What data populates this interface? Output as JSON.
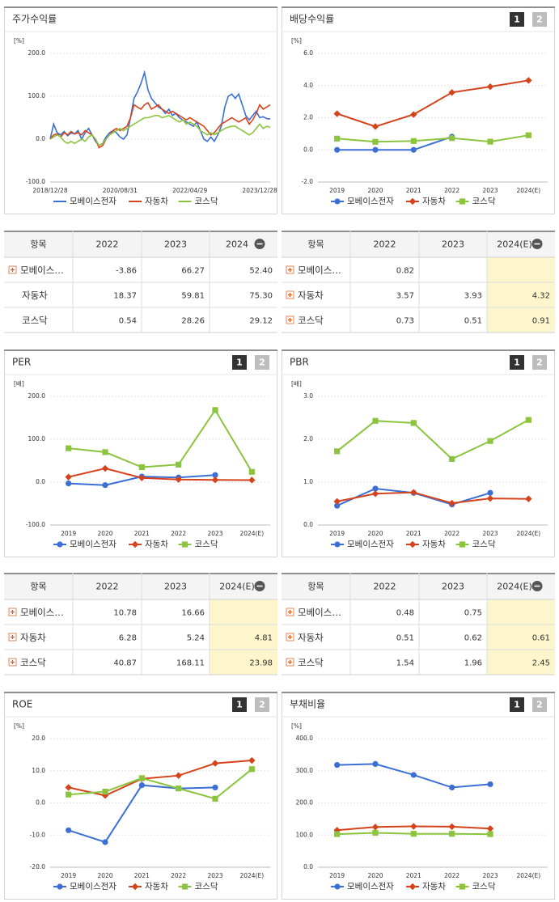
{
  "chart_data": [
    {
      "type": "line",
      "title": "주가수익률",
      "unit": "[%]",
      "grid": true,
      "markers": false,
      "categories": [
        "2018/12/28",
        null,
        null,
        null,
        null,
        null,
        null,
        null,
        null,
        null,
        null,
        null,
        null,
        null,
        null,
        null,
        null,
        null,
        null,
        null,
        "2020/08/31",
        null,
        null,
        null,
        null,
        null,
        null,
        null,
        null,
        null,
        null,
        null,
        null,
        null,
        null,
        null,
        null,
        null,
        null,
        null,
        "2022/04/29",
        null,
        null,
        null,
        null,
        null,
        null,
        null,
        null,
        null,
        null,
        null,
        null,
        null,
        null,
        null,
        null,
        null,
        null,
        null,
        "2023/12/28",
        null,
        null,
        null
      ],
      "ylim": [
        -100,
        200
      ],
      "yticks": [
        {
          "value": 200,
          "label": "200.0"
        },
        {
          "value": 100,
          "label": "100.0"
        },
        {
          "value": 0,
          "label": "0.0"
        },
        {
          "value": -100,
          "label": "-100.0"
        }
      ],
      "series": [
        {
          "name": "모베이스전자",
          "color": "#3b6fd6",
          "marker": "circle",
          "values": [
            0,
            35,
            15,
            10,
            18,
            8,
            15,
            12,
            20,
            0,
            15,
            25,
            10,
            -5,
            -15,
            -10,
            5,
            15,
            20,
            15,
            5,
            0,
            10,
            50,
            95,
            110,
            130,
            155,
            115,
            95,
            85,
            75,
            70,
            60,
            70,
            55,
            60,
            50,
            45,
            40,
            35,
            30,
            40,
            20,
            0,
            -5,
            5,
            -5,
            10,
            30,
            75,
            100,
            105,
            95,
            105,
            80,
            55,
            45,
            55,
            65,
            50,
            52,
            48,
            47
          ]
        },
        {
          "name": "자동차",
          "color": "#d5431d",
          "marker": "diamond",
          "values": [
            0,
            10,
            12,
            5,
            15,
            10,
            18,
            12,
            15,
            10,
            20,
            15,
            10,
            0,
            -20,
            -15,
            0,
            10,
            20,
            25,
            20,
            25,
            30,
            50,
            80,
            75,
            70,
            80,
            85,
            70,
            75,
            80,
            70,
            65,
            60,
            65,
            60,
            55,
            50,
            45,
            50,
            45,
            40,
            35,
            30,
            20,
            10,
            15,
            25,
            35,
            40,
            45,
            50,
            45,
            40,
            45,
            50,
            35,
            45,
            60,
            80,
            70,
            75,
            80
          ]
        },
        {
          "name": "코스닥",
          "color": "#8cc43f",
          "marker": "square",
          "values": [
            0,
            5,
            10,
            5,
            -5,
            -10,
            -5,
            -10,
            -5,
            0,
            -5,
            5,
            10,
            0,
            -15,
            -10,
            0,
            10,
            15,
            20,
            25,
            20,
            25,
            30,
            35,
            40,
            45,
            50,
            50,
            52,
            55,
            55,
            50,
            52,
            55,
            50,
            45,
            40,
            45,
            35,
            40,
            35,
            30,
            20,
            15,
            10,
            15,
            10,
            15,
            20,
            25,
            28,
            30,
            30,
            25,
            20,
            15,
            10,
            15,
            25,
            35,
            25,
            30,
            28
          ]
        }
      ]
    },
    {
      "type": "line",
      "title": "배당수익률",
      "unit": "[%]",
      "pages": [
        "1",
        "2"
      ],
      "grid": true,
      "markers": true,
      "categories": [
        "2019",
        "2020",
        "2021",
        "2022",
        "2023",
        "2024(E)"
      ],
      "ylim": [
        -2,
        6
      ],
      "yticks": [
        {
          "value": 6,
          "label": "6.0"
        },
        {
          "value": 4,
          "label": "4.0"
        },
        {
          "value": 2,
          "label": "2.0"
        },
        {
          "value": 0,
          "label": "0.0"
        },
        {
          "value": -2,
          "label": "-2.0"
        }
      ],
      "series": [
        {
          "name": "모베이스전자",
          "color": "#3b6fd6",
          "marker": "circle",
          "values": [
            0,
            0,
            0,
            0.82,
            null,
            null
          ]
        },
        {
          "name": "자동차",
          "color": "#d5431d",
          "marker": "diamond",
          "values": [
            2.25,
            1.45,
            2.2,
            3.57,
            3.93,
            4.32
          ]
        },
        {
          "name": "코스닥",
          "color": "#8cc43f",
          "marker": "square",
          "values": [
            0.7,
            0.5,
            0.55,
            0.73,
            0.51,
            0.91
          ]
        }
      ]
    },
    {
      "type": "line",
      "title": "PER",
      "unit": "[배]",
      "pages": [
        "1",
        "2"
      ],
      "grid": true,
      "markers": true,
      "categories": [
        "2019",
        "2020",
        "2021",
        "2022",
        "2023",
        "2024(E)"
      ],
      "ylim": [
        -100,
        200
      ],
      "yticks": [
        {
          "value": 200,
          "label": "200.0"
        },
        {
          "value": 100,
          "label": "100.0"
        },
        {
          "value": 0,
          "label": "0.0"
        },
        {
          "value": -100,
          "label": "-100.0"
        }
      ],
      "series": [
        {
          "name": "모베이스전자",
          "color": "#3b6fd6",
          "marker": "circle",
          "values": [
            -3,
            -7,
            13,
            10.78,
            16.66,
            null
          ]
        },
        {
          "name": "자동차",
          "color": "#d5431d",
          "marker": "diamond",
          "values": [
            12,
            32,
            10,
            6.28,
            5.24,
            4.81
          ]
        },
        {
          "name": "코스닥",
          "color": "#8cc43f",
          "marker": "square",
          "values": [
            79,
            70,
            35,
            40.87,
            168.11,
            23.98
          ]
        }
      ]
    },
    {
      "type": "line",
      "title": "PBR",
      "unit": "[배]",
      "pages": [
        "1",
        "2"
      ],
      "grid": true,
      "markers": true,
      "categories": [
        "2019",
        "2020",
        "2021",
        "2022",
        "2023",
        "2024(E)"
      ],
      "ylim": [
        0,
        3
      ],
      "yticks": [
        {
          "value": 3,
          "label": "3.0"
        },
        {
          "value": 2,
          "label": "2.0"
        },
        {
          "value": 1,
          "label": "1.0"
        },
        {
          "value": 0,
          "label": "0.0"
        }
      ],
      "series": [
        {
          "name": "모베이스전자",
          "color": "#3b6fd6",
          "marker": "circle",
          "values": [
            0.45,
            0.85,
            0.75,
            0.48,
            0.75,
            null
          ]
        },
        {
          "name": "자동차",
          "color": "#d5431d",
          "marker": "diamond",
          "values": [
            0.55,
            0.73,
            0.76,
            0.51,
            0.62,
            0.61
          ]
        },
        {
          "name": "코스닥",
          "color": "#8cc43f",
          "marker": "square",
          "values": [
            1.72,
            2.43,
            2.38,
            1.54,
            1.96,
            2.45
          ]
        }
      ]
    },
    {
      "type": "line",
      "title": "ROE",
      "unit": "[%]",
      "pages": [
        "1",
        "2"
      ],
      "grid": true,
      "markers": true,
      "categories": [
        "2019",
        "2020",
        "2021",
        "2022",
        "2023",
        "2024(E)"
      ],
      "ylim": [
        -20,
        20
      ],
      "yticks": [
        {
          "value": 20,
          "label": "20.0"
        },
        {
          "value": 10,
          "label": "10.0"
        },
        {
          "value": 0,
          "label": "0.0"
        },
        {
          "value": -10,
          "label": "-10.0"
        },
        {
          "value": -20,
          "label": "-20.0"
        }
      ],
      "series": [
        {
          "name": "모베이스전자",
          "color": "#3b6fd6",
          "marker": "circle",
          "values": [
            -8.5,
            -12.2,
            5.5,
            4.5,
            4.8,
            null
          ]
        },
        {
          "name": "자동차",
          "color": "#d5431d",
          "marker": "diamond",
          "values": [
            4.8,
            2.3,
            7.5,
            8.5,
            12.3,
            13.2
          ]
        },
        {
          "name": "코스닥",
          "color": "#8cc43f",
          "marker": "square",
          "values": [
            2.6,
            3.5,
            7.7,
            4.5,
            1.3,
            10.5
          ]
        }
      ]
    },
    {
      "type": "line",
      "title": "부채비율",
      "unit": "[%]",
      "pages": [
        "1",
        "2"
      ],
      "grid": true,
      "markers": true,
      "categories": [
        "2019",
        "2020",
        "2021",
        "2022",
        "2023",
        "2024(E)"
      ],
      "ylim": [
        0,
        400
      ],
      "yticks": [
        {
          "value": 400,
          "label": "400.0"
        },
        {
          "value": 300,
          "label": "300.0"
        },
        {
          "value": 200,
          "label": "200.0"
        },
        {
          "value": 100,
          "label": "100.0"
        },
        {
          "value": 0,
          "label": "0.0"
        }
      ],
      "series": [
        {
          "name": "모베이스전자",
          "color": "#3b6fd6",
          "marker": "circle",
          "values": [
            318,
            321,
            287,
            248,
            258,
            null
          ]
        },
        {
          "name": "자동차",
          "color": "#d5431d",
          "marker": "diamond",
          "values": [
            115,
            125,
            127,
            126,
            120,
            null
          ]
        },
        {
          "name": "코스닥",
          "color": "#8cc43f",
          "marker": "square",
          "values": [
            103,
            107,
            104,
            104,
            103,
            null
          ]
        }
      ]
    }
  ],
  "tables": [
    {
      "header": [
        "항목",
        "2022",
        "2023",
        "2024"
      ],
      "highlight_last": false,
      "rows": [
        {
          "name": "모베이스…",
          "expand": true,
          "cells": [
            "-3.86",
            "66.27",
            "52.40"
          ]
        },
        {
          "name": "자동차",
          "expand": false,
          "cells": [
            "18.37",
            "59.81",
            "75.30"
          ]
        },
        {
          "name": "코스닥",
          "expand": false,
          "cells": [
            "0.54",
            "28.26",
            "29.12"
          ]
        }
      ]
    },
    {
      "header": [
        "항목",
        "2022",
        "2023",
        "2024(E)"
      ],
      "highlight_last": true,
      "rows": [
        {
          "name": "모베이스…",
          "expand": true,
          "cells": [
            "0.82",
            null,
            null
          ]
        },
        {
          "name": "자동차",
          "expand": true,
          "cells": [
            "3.57",
            "3.93",
            "4.32"
          ]
        },
        {
          "name": "코스닥",
          "expand": true,
          "cells": [
            "0.73",
            "0.51",
            "0.91"
          ]
        }
      ]
    },
    {
      "header": [
        "항목",
        "2022",
        "2023",
        "2024(E)"
      ],
      "highlight_last": true,
      "rows": [
        {
          "name": "모베이스…",
          "expand": true,
          "cells": [
            "10.78",
            "16.66",
            null
          ]
        },
        {
          "name": "자동차",
          "expand": true,
          "cells": [
            "6.28",
            "5.24",
            "4.81"
          ]
        },
        {
          "name": "코스닥",
          "expand": true,
          "cells": [
            "40.87",
            "168.11",
            "23.98"
          ]
        }
      ]
    },
    {
      "header": [
        "항목",
        "2022",
        "2023",
        "2024(E)"
      ],
      "highlight_last": true,
      "rows": [
        {
          "name": "모베이스…",
          "expand": true,
          "cells": [
            "0.48",
            "0.75",
            null
          ]
        },
        {
          "name": "자동차",
          "expand": true,
          "cells": [
            "0.51",
            "0.62",
            "0.61"
          ]
        },
        {
          "name": "코스닥",
          "expand": true,
          "cells": [
            "1.54",
            "1.96",
            "2.45"
          ]
        }
      ]
    }
  ]
}
